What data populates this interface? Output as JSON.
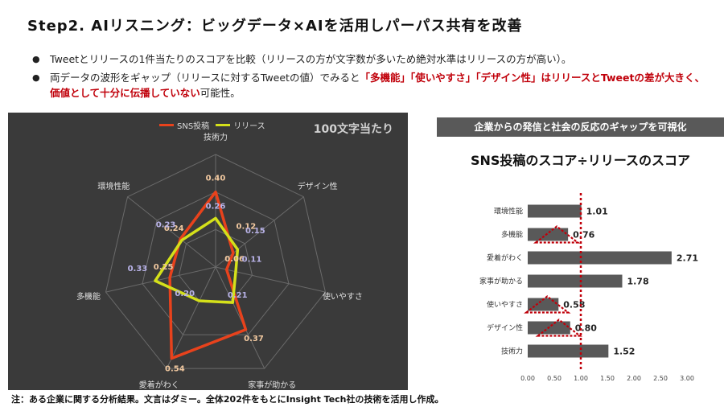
{
  "page": {
    "title": "Step2. AIリスニング：ビッグデータ×AIを活用しパーパス共有を改善",
    "bullets": [
      {
        "text": "Tweetとリリースの1件当たりのスコアを比較（リリースの方が文字数が多いため絶対水準はリリースの方が高い）。"
      },
      {
        "prefix": "両データの波形をギャップ（リリースに対するTweetの値）でみると",
        "highlight": "「多機能」「使いやすさ」「デザイン性」はリリースとTweetの差が大きく、価値として十分に伝播していない",
        "suffix": "可能性。"
      }
    ],
    "footnote": "注：ある企業に関する分析結果。文言はダミー。全体202件をもとにInsight Tech社の技術を活用し作成。",
    "radar_label": "100文字当たり",
    "right_header": "企業からの発信と社会の反応のギャップを可視化",
    "bar_title": "SNS投稿のスコア÷リリースのスコア"
  },
  "chart_data": [
    {
      "type": "radar",
      "axes": [
        "技術力",
        "デザイン性",
        "使いやすさ",
        "家事が助かる",
        "愛着がわく",
        "多機能",
        "環境性能"
      ],
      "series": [
        {
          "name": "SNS投稿",
          "color": "#e8421c",
          "values": [
            0.4,
            0.12,
            0.06,
            0.37,
            0.54,
            0.25,
            0.24
          ]
        },
        {
          "name": "リリース",
          "color": "#d4e01a",
          "values": [
            0.26,
            0.15,
            0.11,
            0.21,
            0.2,
            0.33,
            0.23
          ]
        }
      ],
      "rmax": 0.6,
      "grid": true,
      "legend": "top"
    },
    {
      "type": "bar",
      "orientation": "horizontal",
      "categories": [
        "環境性能",
        "多機能",
        "愛着がわく",
        "家事が助かる",
        "使いやすさ",
        "デザイン性",
        "技術力"
      ],
      "values": [
        1.01,
        0.76,
        2.71,
        1.78,
        0.58,
        0.8,
        1.52
      ],
      "value_labels": [
        "1.01",
        "0.76",
        "2.71",
        "1.78",
        "0.58",
        "0.80",
        "1.52"
      ],
      "xlim": [
        0,
        3
      ],
      "xticks": [
        "0.00",
        "0.50",
        "1.00",
        "1.50",
        "2.00",
        "2.50",
        "3.00"
      ],
      "reference_line": 1.0,
      "bar_color": "#595959",
      "highlight_color": "#c0000a",
      "highlighted": [
        "多機能",
        "使いやすさ",
        "デザイン性"
      ]
    }
  ]
}
